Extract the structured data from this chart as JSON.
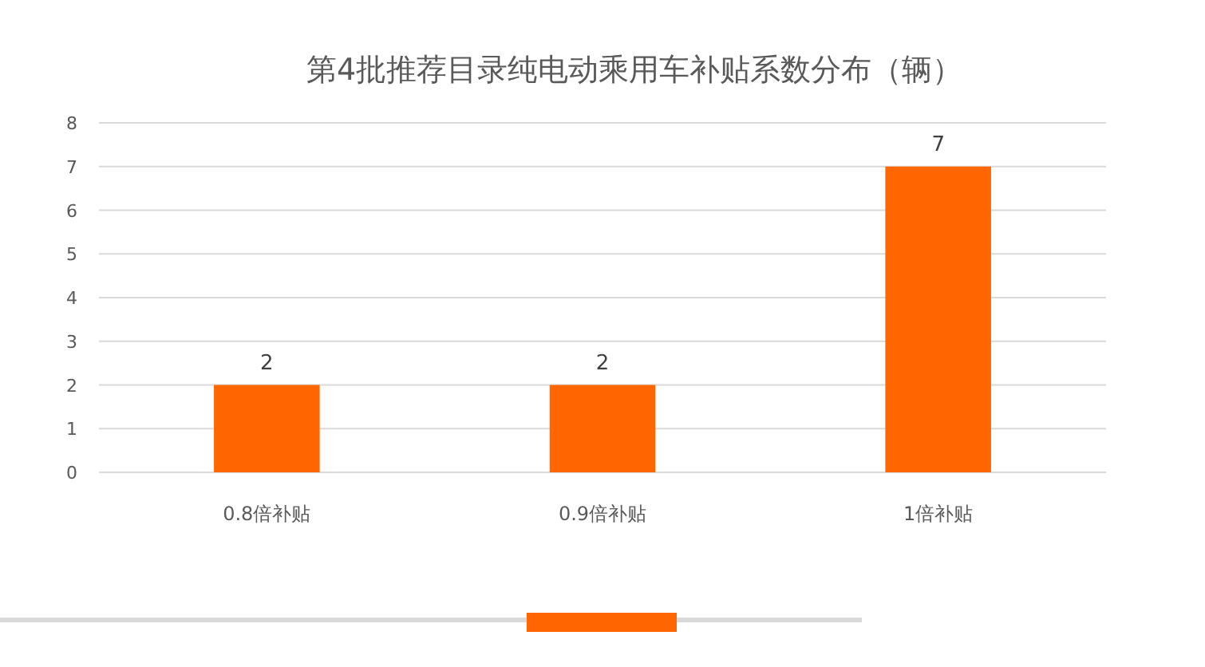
{
  "chart_data": {
    "type": "bar",
    "title": "第4批推荐目录纯电动乘用车补贴系数分布（辆）",
    "categories": [
      "0.8倍补贴",
      "0.9倍补贴",
      "1倍补贴"
    ],
    "values": [
      2,
      2,
      7
    ],
    "color": "#ff6600",
    "ylim": [
      0,
      8
    ],
    "yticks": [
      0,
      1,
      2,
      3,
      4,
      5,
      6,
      7,
      8
    ],
    "grid": "y",
    "data_labels": true
  }
}
